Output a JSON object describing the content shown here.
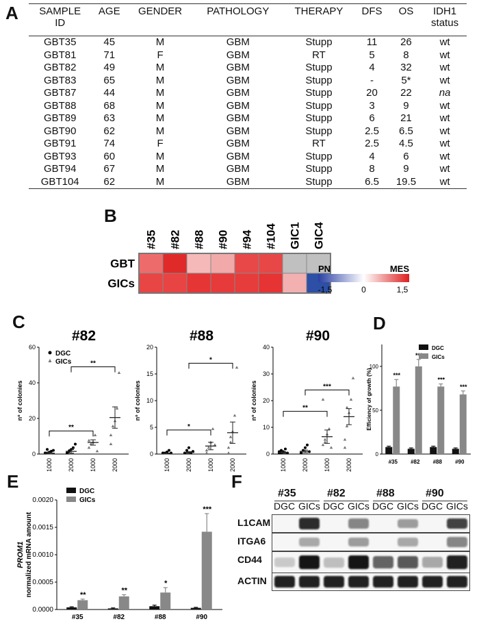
{
  "panels": {
    "A": "A",
    "B": "B",
    "C": "C",
    "D": "D",
    "E": "E",
    "F": "F"
  },
  "table": {
    "headers": [
      "SAMPLE ID",
      "AGE",
      "GENDER",
      "PATHOLOGY",
      "THERAPY",
      "DFS",
      "OS",
      "IDH1 status"
    ],
    "rows": [
      [
        "GBT35",
        "45",
        "M",
        "GBM",
        "Stupp",
        "11",
        "26",
        "wt"
      ],
      [
        "GBT81",
        "71",
        "F",
        "GBM",
        "RT",
        "5",
        "8",
        "wt"
      ],
      [
        "GBT82",
        "49",
        "M",
        "GBM",
        "Stupp",
        "4",
        "32",
        "wt"
      ],
      [
        "GBT83",
        "65",
        "M",
        "GBM",
        "Stupp",
        "-",
        "5*",
        "wt"
      ],
      [
        "GBT87",
        "44",
        "M",
        "GBM",
        "Stupp",
        "20",
        "22",
        "na"
      ],
      [
        "GBT88",
        "68",
        "M",
        "GBM",
        "Stupp",
        "3",
        "9",
        "wt"
      ],
      [
        "GBT89",
        "63",
        "M",
        "GBM",
        "Stupp",
        "6",
        "21",
        "wt"
      ],
      [
        "GBT90",
        "62",
        "M",
        "GBM",
        "Stupp",
        "2.5",
        "6.5",
        "wt"
      ],
      [
        "GBT91",
        "74",
        "F",
        "GBM",
        "RT",
        "2.5",
        "4.5",
        "wt"
      ],
      [
        "GBT93",
        "60",
        "M",
        "GBM",
        "Stupp",
        "4",
        "6",
        "wt"
      ],
      [
        "GBT94",
        "67",
        "M",
        "GBM",
        "Stupp",
        "8",
        "9",
        "wt"
      ],
      [
        "GBT104",
        "62",
        "M",
        "GBM",
        "Stupp",
        "6.5",
        "19.5",
        "wt"
      ]
    ]
  },
  "heatmap": {
    "columns": [
      "#35",
      "#82",
      "#88",
      "#90",
      "#94",
      "#104",
      "GIC1",
      "GIC4"
    ],
    "rows": [
      "GBT",
      "GICs"
    ],
    "colors": [
      [
        "#ee6b6b",
        "#e02a2a",
        "#f5b9b9",
        "#f2a9a9",
        "#e84848",
        "#e84747",
        "#c0c0c0",
        "#c0c0c0"
      ],
      [
        "#e84545",
        "#e84444",
        "#e63535",
        "#e73a3a",
        "#e73c3c",
        "#e63333",
        "#f3b0b0",
        "#2d4fa5"
      ]
    ],
    "legend": {
      "left": "PN",
      "right": "MES",
      "ticks": [
        "-1,5",
        "0",
        "1,5"
      ],
      "gradient": [
        "#2a3fa2",
        "#ffffff",
        "#dd1f1f"
      ]
    }
  },
  "chart_data": [
    {
      "type": "scatter",
      "title": "#82",
      "ylabel": "nº of colonies",
      "ylim": [
        0,
        60
      ],
      "yticks": [
        "0",
        "20",
        "40",
        "60"
      ],
      "categories": [
        "1000",
        "2000",
        "1000",
        "2000"
      ],
      "legend": [
        "DGC",
        "GICs"
      ],
      "groups": [
        {
          "series": "DGC",
          "points": [
            0,
            0,
            0.5,
            1,
            1.5,
            0,
            2
          ],
          "mean": 0.5,
          "sem": 0.5
        },
        {
          "series": "DGC",
          "points": [
            0,
            1,
            2,
            3,
            5,
            0,
            1
          ],
          "mean": 1.5,
          "sem": 1
        },
        {
          "series": "GICs",
          "points": [
            3,
            5,
            6,
            10,
            1,
            7
          ],
          "mean": 6.5,
          "sem": 1.5
        },
        {
          "series": "GICs",
          "points": [
            10,
            15,
            18,
            25,
            45,
            5
          ],
          "mean": 20.5,
          "sem": 6
        }
      ],
      "significance": [
        {
          "from": 0,
          "to": 2,
          "y": 13,
          "label": "**"
        },
        {
          "from": 1,
          "to": 3,
          "y": 49,
          "label": "**"
        }
      ]
    },
    {
      "type": "scatter",
      "title": "#88",
      "ylabel": "nº of colonies",
      "ylim": [
        0,
        20
      ],
      "yticks": [
        "0",
        "5",
        "10",
        "15",
        "20"
      ],
      "categories": [
        "1000",
        "2000",
        "1000",
        "2000"
      ],
      "legend": [],
      "groups": [
        {
          "series": "DGC",
          "points": [
            0,
            0,
            0.2,
            0.5,
            0,
            0
          ],
          "mean": 0.1,
          "sem": 0.1
        },
        {
          "series": "DGC",
          "points": [
            0,
            0.5,
            1,
            0,
            0.3,
            0
          ],
          "mean": 0.3,
          "sem": 0.15
        },
        {
          "series": "GICs",
          "points": [
            0.5,
            1,
            2,
            4.5,
            1.5,
            0
          ],
          "mean": 1.5,
          "sem": 0.7
        },
        {
          "series": "GICs",
          "points": [
            0,
            2,
            4,
            7,
            16,
            1,
            3
          ],
          "mean": 4,
          "sem": 2
        }
      ],
      "significance": [
        {
          "from": 0,
          "to": 2,
          "y": 4.5,
          "label": "*"
        },
        {
          "from": 1,
          "to": 3,
          "y": 17,
          "label": "*"
        }
      ]
    },
    {
      "type": "scatter",
      "title": "#90",
      "ylabel": "nº of colonies",
      "ylim": [
        0,
        40
      ],
      "yticks": [
        "0",
        "10",
        "20",
        "30",
        "40"
      ],
      "categories": [
        "1000",
        "2000",
        "1000",
        "2000"
      ],
      "legend": [],
      "groups": [
        {
          "series": "DGC",
          "points": [
            0,
            1,
            0.5,
            1.5,
            0,
            0.5,
            0
          ],
          "mean": 0.6,
          "sem": 0.3
        },
        {
          "series": "DGC",
          "points": [
            0,
            1,
            2,
            3,
            0.5,
            0
          ],
          "mean": 1,
          "sem": 0.5
        },
        {
          "series": "GICs",
          "points": [
            3,
            5,
            7,
            9,
            2,
            20,
            4
          ],
          "mean": 6.5,
          "sem": 2.5
        },
        {
          "series": "GICs",
          "points": [
            5,
            10,
            15,
            20,
            28,
            2,
            17
          ],
          "mean": 14,
          "sem": 3
        }
      ],
      "significance": [
        {
          "from": 0,
          "to": 2,
          "y": 16,
          "label": "**"
        },
        {
          "from": 1,
          "to": 3,
          "y": 24,
          "label": "***"
        }
      ]
    },
    {
      "type": "bar",
      "ylabel": "Efficiency of growth (%)",
      "ylim": [
        0,
        125
      ],
      "yticks": [
        "0",
        "50",
        "100"
      ],
      "categories": [
        "#35",
        "#82",
        "#88",
        "#90"
      ],
      "series": [
        {
          "name": "DGC",
          "values": [
            8,
            6,
            8,
            6
          ],
          "errors": [
            1,
            1,
            1,
            1
          ],
          "color": "#111111"
        },
        {
          "name": "GICs",
          "values": [
            77,
            100,
            77,
            68
          ],
          "errors": [
            8,
            8,
            3,
            4
          ],
          "color": "#888888"
        }
      ],
      "stars": [
        "***",
        "***",
        "***",
        "***"
      ]
    },
    {
      "type": "bar",
      "ylabel": "normalized mRNA amount",
      "ylabel_gene": "PROM1",
      "ylim": [
        0,
        0.002
      ],
      "yticks": [
        "0.0000",
        "0.0005",
        "0.0010",
        "0.0015",
        "0.0020"
      ],
      "categories": [
        "#35",
        "#82",
        "#88",
        "#90"
      ],
      "series": [
        {
          "name": "DGC",
          "values": [
            4e-05,
            2e-05,
            6e-05,
            3e-05
          ],
          "errors": [
            1e-05,
            1e-05,
            2e-05,
            1e-05
          ],
          "color": "#111111"
        },
        {
          "name": "GICs",
          "values": [
            0.00017,
            0.00024,
            0.00031,
            0.00142
          ],
          "errors": [
            2e-05,
            3e-05,
            9e-05,
            0.00033
          ],
          "color": "#888888"
        }
      ],
      "stars": [
        "**",
        "**",
        "*",
        "***"
      ]
    }
  ],
  "blot": {
    "samples": [
      "#35",
      "#82",
      "#88",
      "#90"
    ],
    "lanes": [
      "DGC",
      "GICs",
      "DGC",
      "GICs",
      "DGC",
      "GICs",
      "DGC",
      "GICs"
    ],
    "proteins": [
      "L1CAM",
      "ITGA6",
      "CD44",
      "ACTIN"
    ],
    "intensity": [
      [
        0,
        0.85,
        0,
        0.45,
        0,
        0.35,
        0,
        0.75
      ],
      [
        0,
        0.3,
        0,
        0.35,
        0,
        0.3,
        0,
        0.45
      ],
      [
        0.15,
        0.95,
        0.2,
        0.95,
        0.6,
        0.65,
        0.3,
        0.9
      ],
      [
        0.9,
        0.9,
        0.9,
        0.9,
        0.9,
        0.9,
        0.9,
        0.9
      ]
    ]
  }
}
